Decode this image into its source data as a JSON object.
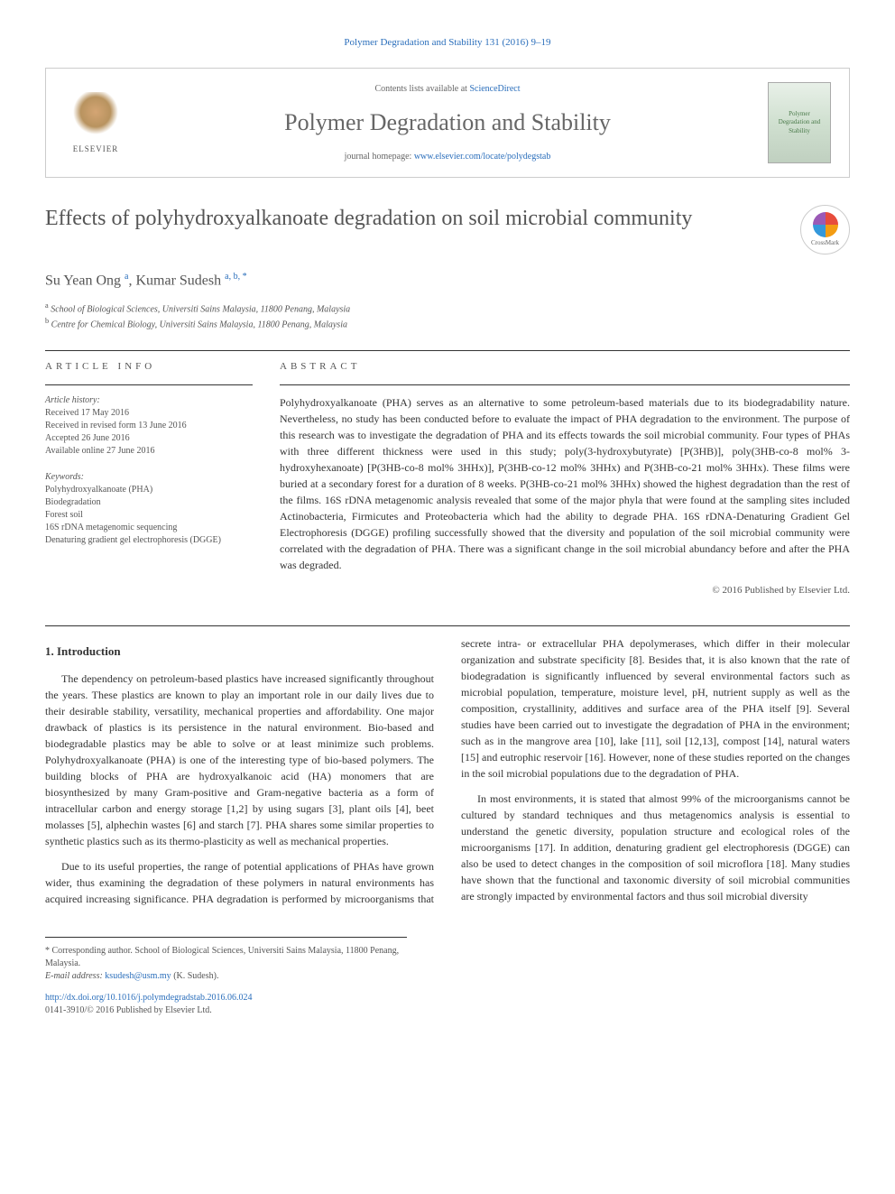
{
  "header": {
    "citation": "Polymer Degradation and Stability 131 (2016) 9–19",
    "contents_prefix": "Contents lists available at ",
    "contents_link": "ScienceDirect",
    "journal_name": "Polymer Degradation and Stability",
    "homepage_prefix": "journal homepage: ",
    "homepage_url": "www.elsevier.com/locate/polydegstab",
    "publisher": "ELSEVIER",
    "cover_text": "Polymer Degradation and Stability"
  },
  "crossmark": "CrossMark",
  "title": "Effects of polyhydroxyalkanoate degradation on soil microbial community",
  "authors": [
    {
      "name": "Su Yean Ong",
      "affil": "a"
    },
    {
      "name": "Kumar Sudesh",
      "affil": "a, b, *"
    }
  ],
  "authors_line": "Su Yean Ong",
  "author2": "Kumar Sudesh",
  "affiliations": {
    "a": "School of Biological Sciences, Universiti Sains Malaysia, 11800 Penang, Malaysia",
    "b": "Centre for Chemical Biology, Universiti Sains Malaysia, 11800 Penang, Malaysia"
  },
  "article_info": {
    "heading": "ARTICLE INFO",
    "history_label": "Article history:",
    "received": "Received 17 May 2016",
    "revised": "Received in revised form 13 June 2016",
    "accepted": "Accepted 26 June 2016",
    "online": "Available online 27 June 2016",
    "keywords_label": "Keywords:",
    "keywords": [
      "Polyhydroxyalkanoate (PHA)",
      "Biodegradation",
      "Forest soil",
      "16S rDNA metagenomic sequencing",
      "Denaturing gradient gel electrophoresis (DGGE)"
    ]
  },
  "abstract": {
    "heading": "ABSTRACT",
    "text": "Polyhydroxyalkanoate (PHA) serves as an alternative to some petroleum-based materials due to its biodegradability nature. Nevertheless, no study has been conducted before to evaluate the impact of PHA degradation to the environment. The purpose of this research was to investigate the degradation of PHA and its effects towards the soil microbial community. Four types of PHAs with three different thickness were used in this study; poly(3-hydroxybutyrate) [P(3HB)], poly(3HB-co-8 mol% 3-hydroxyhexanoate) [P(3HB-co-8 mol% 3HHx)], P(3HB-co-12 mol% 3HHx) and P(3HB-co-21 mol% 3HHx). These films were buried at a secondary forest for a duration of 8 weeks. P(3HB-co-21 mol% 3HHx) showed the highest degradation than the rest of the films. 16S rDNA metagenomic analysis revealed that some of the major phyla that were found at the sampling sites included Actinobacteria, Firmicutes and Proteobacteria which had the ability to degrade PHA. 16S rDNA-Denaturing Gradient Gel Electrophoresis (DGGE) profiling successfully showed that the diversity and population of the soil microbial community were correlated with the degradation of PHA. There was a significant change in the soil microbial abundancy before and after the PHA was degraded.",
    "copyright": "© 2016 Published by Elsevier Ltd."
  },
  "body": {
    "section1_heading": "1. Introduction",
    "para1": "The dependency on petroleum-based plastics have increased significantly throughout the years. These plastics are known to play an important role in our daily lives due to their desirable stability, versatility, mechanical properties and affordability. One major drawback of plastics is its persistence in the natural environment. Bio-based and biodegradable plastics may be able to solve or at least minimize such problems. Polyhydroxyalkanoate (PHA) is one of the interesting type of bio-based polymers. The building blocks of PHA are hydroxyalkanoic acid (HA) monomers that are biosynthesized by many Gram-positive and Gram-negative bacteria as a form of intracellular carbon and energy storage [1,2] by using sugars [3], plant oils [4], beet molasses [5], alphechin wastes [6] and starch [7]. PHA shares some similar properties to synthetic plastics such as its thermo-plasticity as well as mechanical properties.",
    "para2": "Due to its useful properties, the range of potential applications of PHAs have grown wider, thus examining the degradation of these polymers in natural environments has acquired increasing significance. PHA degradation is performed by microorganisms that secrete intra- or extracellular PHA depolymerases, which differ in their molecular organization and substrate specificity [8]. Besides that, it is also known that the rate of biodegradation is significantly influenced by several environmental factors such as microbial population, temperature, moisture level, pH, nutrient supply as well as the composition, crystallinity, additives and surface area of the PHA itself [9]. Several studies have been carried out to investigate the degradation of PHA in the environment; such as in the mangrove area [10], lake [11], soil [12,13], compost [14], natural waters [15] and eutrophic reservoir [16]. However, none of these studies reported on the changes in the soil microbial populations due to the degradation of PHA.",
    "para3": "In most environments, it is stated that almost 99% of the microorganisms cannot be cultured by standard techniques and thus metagenomics analysis is essential to understand the genetic diversity, population structure and ecological roles of the microorganisms [17]. In addition, denaturing gradient gel electrophoresis (DGGE) can also be used to detect changes in the composition of soil microflora [18]. Many studies have shown that the functional and taxonomic diversity of soil microbial communities are strongly impacted by environmental factors and thus soil microbial diversity"
  },
  "footer": {
    "corresponding": "* Corresponding author. School of Biological Sciences, Universiti Sains Malaysia, 11800 Penang, Malaysia.",
    "email_label": "E-mail address:",
    "email": "ksudesh@usm.my",
    "email_suffix": "(K. Sudesh).",
    "doi": "http://dx.doi.org/10.1016/j.polymdegradstab.2016.06.024",
    "issn": "0141-3910/© 2016 Published by Elsevier Ltd."
  },
  "refs": {
    "r1": "[1,2]",
    "r3": "[3]",
    "r4": "[4]",
    "r5": "[5]",
    "r6": "[6]",
    "r7": "[7]",
    "r8": "[8]",
    "r9": "[9]",
    "r10": "[10]",
    "r11": "[11]",
    "r12": "[12,13]",
    "r14": "[14]",
    "r15": "[15]",
    "r16": "[16]",
    "r17": "[17]",
    "r18": "[18]"
  },
  "colors": {
    "link": "#2a6ebb",
    "text": "#333333",
    "muted": "#555555"
  }
}
